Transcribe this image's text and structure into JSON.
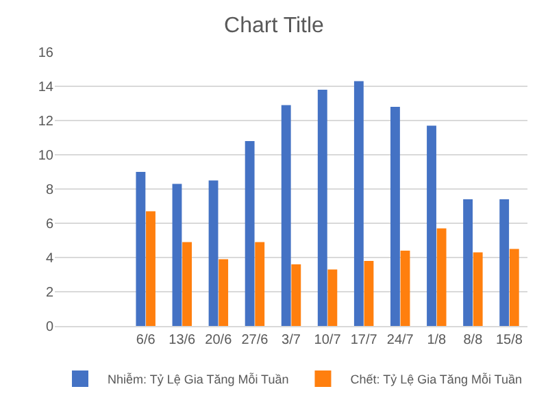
{
  "chart_data": {
    "type": "bar",
    "title": "Chart Title",
    "categories": [
      null,
      null,
      "6/6",
      "13/6",
      "20/6",
      "27/6",
      "3/7",
      "10/7",
      "17/7",
      "24/7",
      "1/8",
      "8/8",
      "15/8"
    ],
    "series": [
      {
        "name": "Nhiễm: Tỷ Lệ Gia Tăng Mỗi Tuần",
        "color": "#4472c4",
        "values": [
          null,
          null,
          9.0,
          8.3,
          8.5,
          10.8,
          12.9,
          13.8,
          14.3,
          12.8,
          11.7,
          7.4,
          7.4
        ]
      },
      {
        "name": "Chết: Tỷ Lệ Gia Tăng Mỗi Tuần",
        "color": "#ff7f0e",
        "values": [
          null,
          null,
          6.7,
          4.9,
          3.9,
          4.9,
          3.6,
          3.3,
          3.8,
          4.4,
          5.7,
          4.3,
          4.5
        ]
      }
    ],
    "ylim": [
      0,
      16
    ],
    "yticks": [
      0,
      2,
      4,
      6,
      8,
      10,
      12,
      14,
      16
    ],
    "grid": "y",
    "legend": "bottom"
  }
}
